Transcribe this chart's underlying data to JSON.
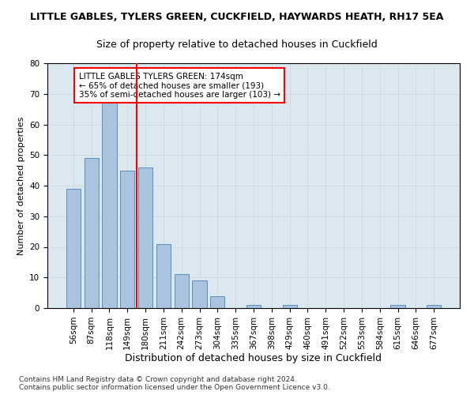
{
  "title": "LITTLE GABLES, TYLERS GREEN, CUCKFIELD, HAYWARDS HEATH, RH17 5EA",
  "subtitle": "Size of property relative to detached houses in Cuckfield",
  "xlabel": "Distribution of detached houses by size in Cuckfield",
  "ylabel": "Number of detached properties",
  "categories": [
    "56sqm",
    "87sqm",
    "118sqm",
    "149sqm",
    "180sqm",
    "211sqm",
    "242sqm",
    "273sqm",
    "304sqm",
    "335sqm",
    "367sqm",
    "398sqm",
    "429sqm",
    "460sqm",
    "491sqm",
    "522sqm",
    "553sqm",
    "584sqm",
    "615sqm",
    "646sqm",
    "677sqm"
  ],
  "values": [
    39,
    49,
    67,
    45,
    46,
    21,
    11,
    9,
    4,
    0,
    1,
    0,
    1,
    0,
    0,
    0,
    0,
    0,
    1,
    0,
    1
  ],
  "bar_color": "#aac4e0",
  "bar_edge_color": "#5b8db8",
  "grid_color": "#c8d4e0",
  "background_color": "#dce8f0",
  "vline_color": "red",
  "vline_x": 3.5,
  "annotation_text": "LITTLE GABLES TYLERS GREEN: 174sqm\n← 65% of detached houses are smaller (193)\n35% of semi-detached houses are larger (103) →",
  "annotation_box_color": "white",
  "annotation_box_edge_color": "red",
  "ylim": [
    0,
    80
  ],
  "yticks": [
    0,
    10,
    20,
    30,
    40,
    50,
    60,
    70,
    80
  ],
  "footnote": "Contains HM Land Registry data © Crown copyright and database right 2024.\nContains public sector information licensed under the Open Government Licence v3.0.",
  "title_fontsize": 9,
  "subtitle_fontsize": 9,
  "xlabel_fontsize": 9,
  "ylabel_fontsize": 8,
  "tick_fontsize": 7.5,
  "annot_fontsize": 7.5,
  "footnote_fontsize": 6.5
}
